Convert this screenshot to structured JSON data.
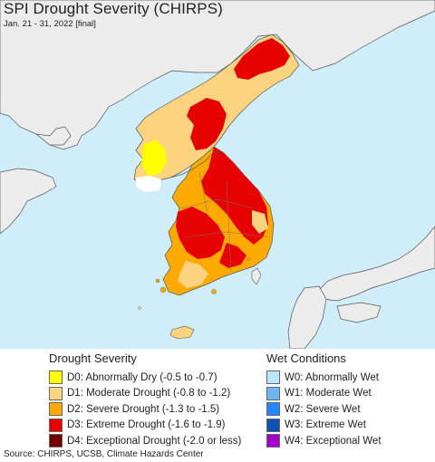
{
  "title": "SPI Drought Severity (CHIRPS)",
  "subtitle": "Jan. 21 - 31, 2022 [final]",
  "colors": {
    "ocean": "#cfeefa",
    "land": "#ececec",
    "D0": "#ffff00",
    "D1": "#fcd37f",
    "D2": "#ffaa00",
    "D3": "#e60000",
    "D4": "#730000",
    "W0": "#b9e6fa",
    "W1": "#71b5f0",
    "W2": "#2884ff",
    "W3": "#1050b0",
    "W4": "#a000c8"
  },
  "legend": {
    "drought": {
      "heading": "Drought Severity",
      "items": [
        {
          "color": "#ffff00",
          "label": "D0: Abnormally Dry (-0.5 to -0.7)"
        },
        {
          "color": "#fcd37f",
          "label": "D1: Moderate Drought (-0.8 to -1.2)"
        },
        {
          "color": "#ffaa00",
          "label": "D2: Severe Drought (-1.3 to -1.5)"
        },
        {
          "color": "#e60000",
          "label": "D3: Extreme Drought (-1.6 to -1.9)"
        },
        {
          "color": "#730000",
          "label": "D4: Exceptional Drought (-2.0 or less)"
        }
      ]
    },
    "wet": {
      "heading": "Wet Conditions",
      "items": [
        {
          "color": "#b9e6fa",
          "label": "W0: Abnormally Wet"
        },
        {
          "color": "#71b5f0",
          "label": "W1: Moderate Wet"
        },
        {
          "color": "#2884ff",
          "label": "W2: Severe Wet"
        },
        {
          "color": "#1050b0",
          "label": "W3: Extreme Wet"
        },
        {
          "color": "#a000c8",
          "label": "W4: Exceptional Wet"
        }
      ]
    }
  },
  "source": "Source: CHIRPS, UCSB, Climate Hazards Center"
}
